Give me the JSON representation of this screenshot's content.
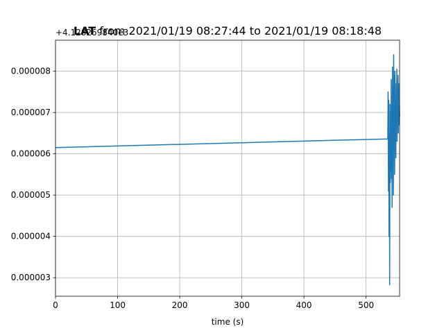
{
  "chart_data": {
    "type": "line",
    "title_bold": "LAT",
    "title_rest": " from 2021/01/19 08:27:44 to 2021/01/19 08:18:48",
    "xlabel": "time (s)",
    "ylabel": "",
    "y_offset_label": "+4.128269840e3",
    "xlim": [
      0,
      554
    ],
    "ylim": [
      2.55e-06,
      8.75e-06
    ],
    "x_ticks": [
      0,
      100,
      200,
      300,
      400,
      500
    ],
    "x_tick_labels": [
      "0",
      "100",
      "200",
      "300",
      "400",
      "500"
    ],
    "y_ticks": [
      3e-06,
      4e-06,
      5e-06,
      6e-06,
      7e-06,
      8e-06
    ],
    "y_tick_labels": [
      "0.000003",
      "0.000004",
      "0.000005",
      "0.000006",
      "0.000007",
      "0.000008"
    ],
    "grid": true,
    "line_color": "#1f77b4",
    "series": [
      {
        "x": [
          0,
          535,
          535.5,
          536,
          536.5,
          537,
          537.5,
          538,
          538.5,
          539,
          539.5,
          540,
          540.5,
          541,
          541.5,
          542,
          542.5,
          543,
          543.5,
          544,
          544.5,
          545,
          545.5,
          546,
          546.5,
          547,
          547.5,
          548,
          548.5,
          549,
          549.5,
          550,
          550.5,
          551,
          551.5,
          552,
          552.5,
          553,
          553.5,
          554
        ],
        "y": [
          6.15e-06,
          6.36e-06,
          7.5e-06,
          5.1e-06,
          7.3e-06,
          4e-06,
          6.5e-06,
          2.83e-06,
          7.2e-06,
          5.3e-06,
          6.8e-06,
          5.6e-06,
          7.8e-06,
          5.4e-06,
          6.2e-06,
          4.7e-06,
          8.1e-06,
          5.8e-06,
          7.6e-06,
          5e-06,
          8.4e-06,
          6.1e-06,
          7.9e-06,
          5.5e-06,
          8e-06,
          6.4e-06,
          7.1e-06,
          5.9e-06,
          7.7e-06,
          6.6e-06,
          8.05e-06,
          6.3e-06,
          7.4e-06,
          6.8e-06,
          7.9e-06,
          6.5e-06,
          7.7e-06,
          6.7e-06,
          7.2e-06,
          6.9e-06
        ]
      }
    ]
  }
}
